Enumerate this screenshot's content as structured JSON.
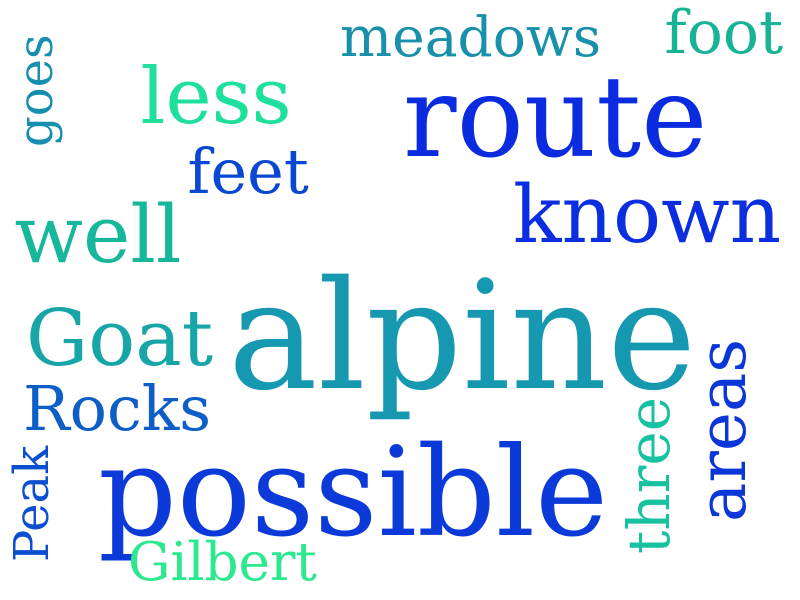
{
  "words": [
    {
      "text": "route",
      "color": "#0a2be0"
    },
    {
      "text": "alpine",
      "color": "#1598b0"
    },
    {
      "text": "possible",
      "color": "#0b3ad8"
    },
    {
      "text": "meadows",
      "color": "#1890ac"
    },
    {
      "text": "foot",
      "color": "#18b294"
    },
    {
      "text": "less",
      "color": "#1ee09a"
    },
    {
      "text": "known",
      "color": "#0a2ee0"
    },
    {
      "text": "well",
      "color": "#16b79a"
    },
    {
      "text": "Goat",
      "color": "#17a5a8"
    },
    {
      "text": "feet",
      "color": "#0b48d2"
    },
    {
      "text": "Rocks",
      "color": "#0e5ec8"
    },
    {
      "text": "Gilbert",
      "color": "#2ce88e"
    },
    {
      "text": "goes",
      "color": "#168fae"
    },
    {
      "text": "Peak",
      "color": "#0b4fd0"
    },
    {
      "text": "three",
      "color": "#17c2a0"
    },
    {
      "text": "areas",
      "color": "#0b36d8"
    }
  ]
}
